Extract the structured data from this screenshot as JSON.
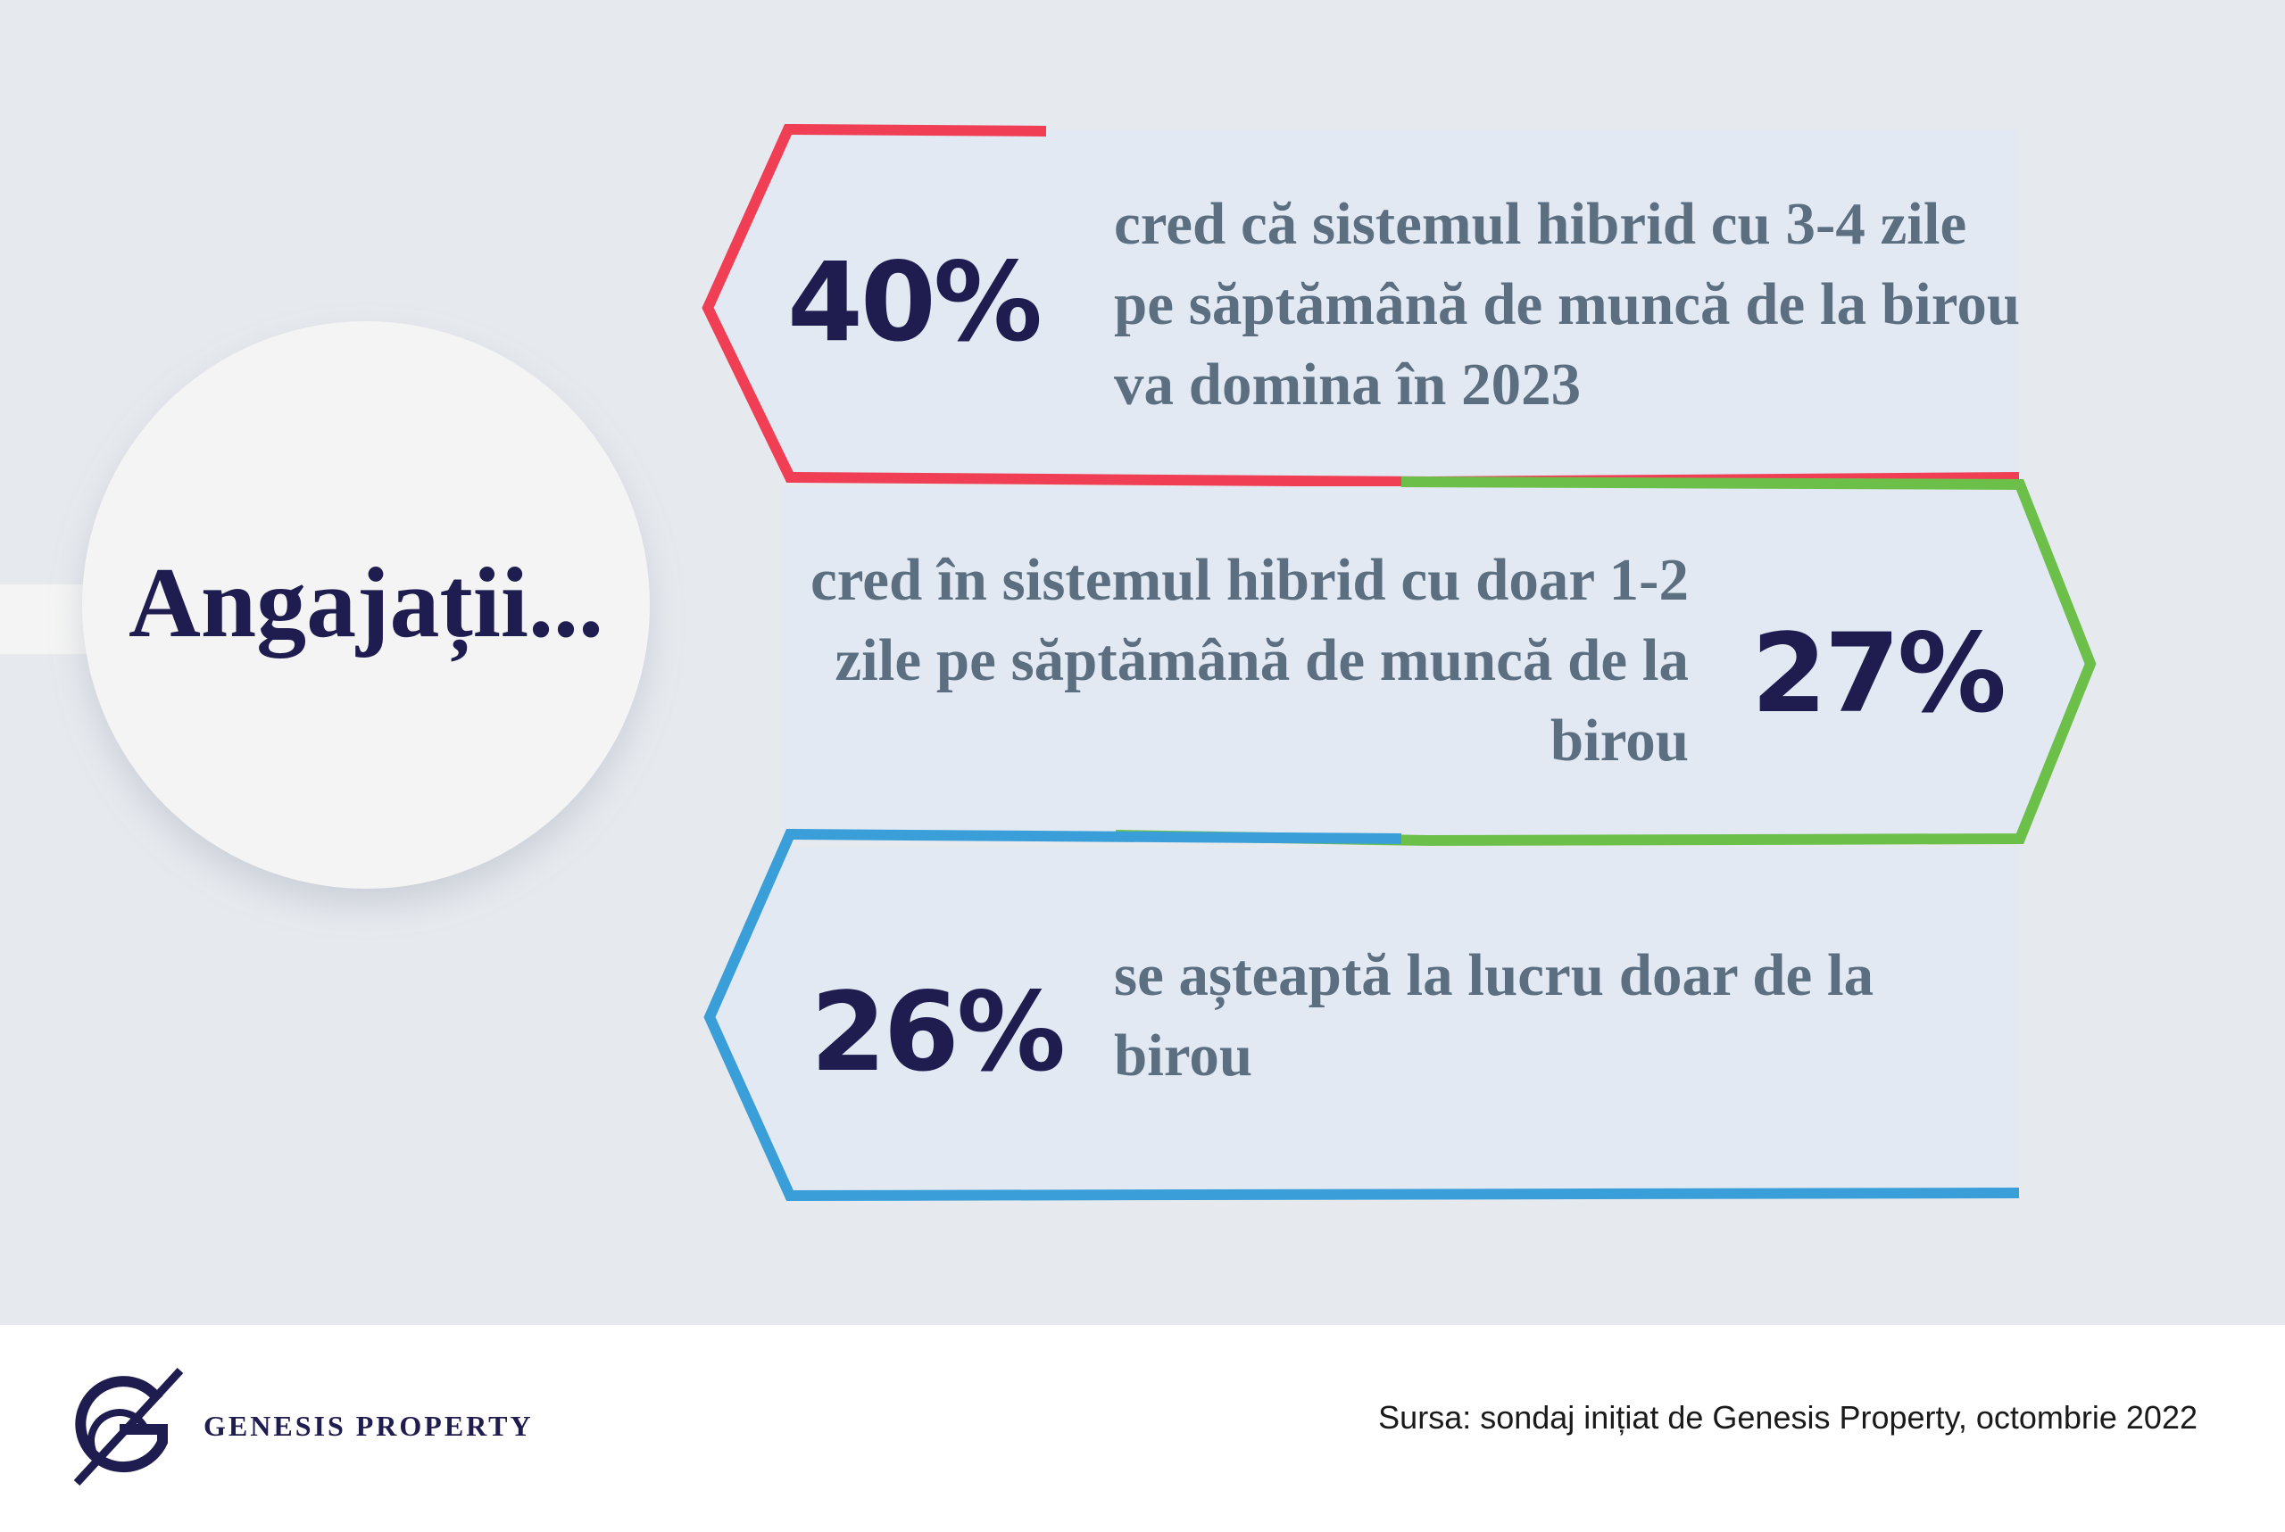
{
  "title": "Angajații...",
  "items": [
    {
      "percent": "40%",
      "text": "cred că sistemul hibrid cu 3-4 zile pe săptămână de muncă de la birou va domina în 2023",
      "color": "#f03e55"
    },
    {
      "percent": "27%",
      "text": "cred în sistemul hibrid cu doar 1-2 zile pe săptămână de muncă de la birou",
      "color": "#6cc04a"
    },
    {
      "percent": "26%",
      "text": "se așteaptă la lucru doar de la birou",
      "color": "#3a9fd8"
    }
  ],
  "footer": {
    "brand": "GENESIS PROPERTY",
    "logo_icon": "genesis-g-logo",
    "source": "Sursa: sondaj inițiat de Genesis Property, octombrie 2022"
  },
  "colors": {
    "background": "#e6e9ee",
    "panel": "#e2e9f3",
    "circle": "#f4f4f4",
    "navy": "#1f1d4f",
    "text": "#5c6f80"
  }
}
